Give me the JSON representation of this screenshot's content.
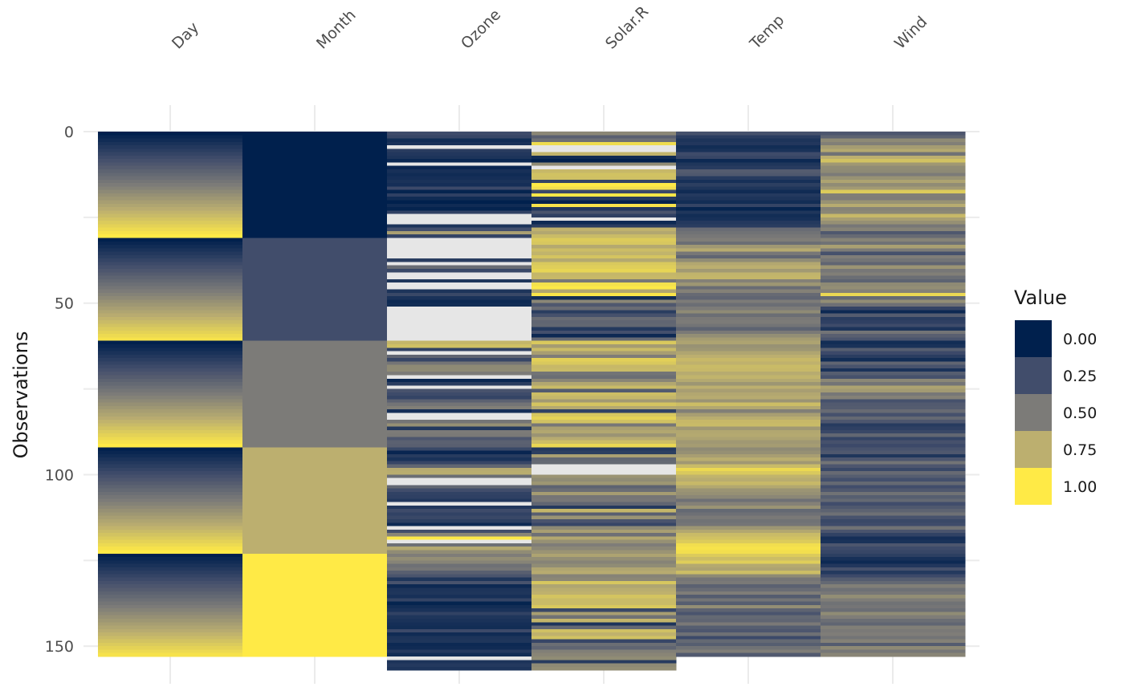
{
  "chart_data": {
    "type": "heatmap",
    "title": "",
    "xlabel": "",
    "ylabel": "Observations",
    "columns": [
      "Day",
      "Month",
      "Ozone",
      "Solar.R",
      "Temp",
      "Wind"
    ],
    "y_ticks": [
      0,
      50,
      100,
      150
    ],
    "ylim": [
      0,
      153
    ],
    "n_rows": 153,
    "grid": true,
    "missing_color": "#e6e6e6",
    "legend": {
      "title": "Value",
      "position": "right",
      "entries": [
        {
          "label": "0.00",
          "value": 0.0,
          "color": "#00204d"
        },
        {
          "label": "0.25",
          "value": 0.25,
          "color": "#414d6b"
        },
        {
          "label": "0.50",
          "value": 0.5,
          "color": "#7c7b78"
        },
        {
          "label": "0.75",
          "value": 0.75,
          "color": "#bcaf6f"
        },
        {
          "label": "1.00",
          "value": 1.0,
          "color": "#ffea46"
        }
      ]
    },
    "colorscale": [
      "#00204d",
      "#414d6b",
      "#7c7b78",
      "#bcaf6f",
      "#ffea46"
    ],
    "series": [
      {
        "name": "Day",
        "values": [
          0.0,
          0.033,
          0.067,
          0.1,
          0.133,
          0.167,
          0.2,
          0.233,
          0.267,
          0.3,
          0.333,
          0.367,
          0.4,
          0.433,
          0.467,
          0.5,
          0.533,
          0.567,
          0.6,
          0.633,
          0.667,
          0.7,
          0.733,
          0.767,
          0.8,
          0.833,
          0.867,
          0.9,
          0.933,
          0.967,
          1.0,
          0.0,
          0.033,
          0.067,
          0.1,
          0.133,
          0.167,
          0.2,
          0.233,
          0.267,
          0.3,
          0.333,
          0.367,
          0.4,
          0.433,
          0.467,
          0.5,
          0.533,
          0.567,
          0.6,
          0.633,
          0.667,
          0.7,
          0.733,
          0.767,
          0.8,
          0.833,
          0.867,
          0.9,
          0.933,
          0.967,
          0.0,
          0.033,
          0.067,
          0.1,
          0.133,
          0.167,
          0.2,
          0.233,
          0.267,
          0.3,
          0.333,
          0.367,
          0.4,
          0.433,
          0.467,
          0.5,
          0.533,
          0.567,
          0.6,
          0.633,
          0.667,
          0.7,
          0.733,
          0.767,
          0.8,
          0.833,
          0.867,
          0.9,
          0.933,
          0.967,
          1.0,
          0.0,
          0.033,
          0.067,
          0.1,
          0.133,
          0.167,
          0.2,
          0.233,
          0.267,
          0.3,
          0.333,
          0.367,
          0.4,
          0.433,
          0.467,
          0.5,
          0.533,
          0.567,
          0.6,
          0.633,
          0.667,
          0.7,
          0.733,
          0.767,
          0.8,
          0.833,
          0.867,
          0.9,
          0.933,
          0.967,
          1.0,
          0.0,
          0.033,
          0.067,
          0.1,
          0.133,
          0.167,
          0.2,
          0.233,
          0.267,
          0.3,
          0.333,
          0.367,
          0.4,
          0.433,
          0.467,
          0.5,
          0.533,
          0.567,
          0.6,
          0.633,
          0.667,
          0.7,
          0.733,
          0.767,
          0.8,
          0.833,
          0.867,
          0.9,
          0.933,
          0.967
        ]
      },
      {
        "name": "Month",
        "values": [
          0,
          0,
          0,
          0,
          0,
          0,
          0,
          0,
          0,
          0,
          0,
          0,
          0,
          0,
          0,
          0,
          0,
          0,
          0,
          0,
          0,
          0,
          0,
          0,
          0,
          0,
          0,
          0,
          0,
          0,
          0,
          0.25,
          0.25,
          0.25,
          0.25,
          0.25,
          0.25,
          0.25,
          0.25,
          0.25,
          0.25,
          0.25,
          0.25,
          0.25,
          0.25,
          0.25,
          0.25,
          0.25,
          0.25,
          0.25,
          0.25,
          0.25,
          0.25,
          0.25,
          0.25,
          0.25,
          0.25,
          0.25,
          0.25,
          0.25,
          0.25,
          0.5,
          0.5,
          0.5,
          0.5,
          0.5,
          0.5,
          0.5,
          0.5,
          0.5,
          0.5,
          0.5,
          0.5,
          0.5,
          0.5,
          0.5,
          0.5,
          0.5,
          0.5,
          0.5,
          0.5,
          0.5,
          0.5,
          0.5,
          0.5,
          0.5,
          0.5,
          0.5,
          0.5,
          0.5,
          0.5,
          0.5,
          0.75,
          0.75,
          0.75,
          0.75,
          0.75,
          0.75,
          0.75,
          0.75,
          0.75,
          0.75,
          0.75,
          0.75,
          0.75,
          0.75,
          0.75,
          0.75,
          0.75,
          0.75,
          0.75,
          0.75,
          0.75,
          0.75,
          0.75,
          0.75,
          0.75,
          0.75,
          0.75,
          0.75,
          0.75,
          0.75,
          0.75,
          1,
          1,
          1,
          1,
          1,
          1,
          1,
          1,
          1,
          1,
          1,
          1,
          1,
          1,
          1,
          1,
          1,
          1,
          1,
          1,
          1,
          1,
          1,
          1,
          1,
          1,
          1,
          1,
          1,
          1
        ]
      },
      {
        "name": "Ozone",
        "values": [
          0.24,
          0.21,
          0.07,
          0.1,
          null,
          0.16,
          0.13,
          0.11,
          0.04,
          null,
          0.03,
          0.09,
          0.06,
          0.08,
          0.1,
          0.08,
          0.23,
          0.02,
          0.18,
          0.06,
          0.0,
          0.06,
          0.02,
          0.19,
          null,
          null,
          null,
          0.11,
          0.26,
          0.68,
          0.2,
          null,
          null,
          null,
          null,
          null,
          null,
          0.16,
          null,
          0.42,
          0.22,
          null,
          null,
          0.12,
          null,
          null,
          0.11,
          0.22,
          0.1,
          0.05,
          0.07,
          null,
          null,
          null,
          null,
          null,
          null,
          null,
          null,
          null,
          null,
          0.78,
          0.82,
          0.19,
          null,
          0.38,
          0.21,
          0.47,
          0.57,
          0.57,
          0.5,
          null,
          0.04,
          0.16,
          null,
          0.28,
          0.24,
          0.2,
          0.36,
          0.46,
          0.52,
          0.08,
          null,
          null,
          0.47,
          0.6,
          0.14,
          0.5,
          0.49,
          0.3,
          0.36,
          0.35,
          0.22,
          0.03,
          0.15,
          0.1,
          0.21,
          0.39,
          0.73,
          0.74,
          0.43,
          null,
          null,
          0.39,
          0.25,
          0.19,
          0.18,
          0.13,
          null,
          0.13,
          0.24,
          0.19,
          0.22,
          0.17,
          0.05,
          null,
          0.25,
          0.55,
          0.99,
          null,
          0.44,
          0.72,
          0.58,
          0.51,
          0.59,
          0.54,
          0.44,
          0.47,
          0.35,
          0.29,
          0.12,
          0.28,
          0.05,
          0.11,
          0.12,
          0.09,
          0.2,
          0.02,
          0.07,
          0.1,
          0.19,
          0.12,
          0.1,
          0.08,
          0.07,
          0.23,
          0.06,
          0.11,
          0.12,
          0.05,
          0.06,
          0.14,
          0.07,
          null,
          0.11,
          0.14,
          0.11
        ]
      },
      {
        "name": "Solar.R",
        "values": [
          0.56,
          0.35,
          0.44,
          0.94,
          null,
          null,
          0.77,
          0.06,
          0.0,
          0.58,
          null,
          0.79,
          0.83,
          0.82,
          0.2,
          1.0,
          0.95,
          0.23,
          0.99,
          0.16,
          0.01,
          0.97,
          0.13,
          0.29,
          0.18,
          null,
          0.05,
          0.16,
          0.76,
          0.71,
          0.8,
          0.87,
          0.85,
          0.72,
          0.81,
          0.77,
          0.84,
          0.72,
          0.86,
          0.88,
          0.91,
          0.78,
          0.79,
          0.48,
          0.96,
          0.99,
          0.71,
          0.98,
          0.07,
          0.56,
          0.31,
          0.42,
          0.16,
          0.27,
          0.42,
          0.38,
          0.39,
          0.14,
          0.26,
          0.05,
          0.41,
          0.86,
          0.66,
          0.8,
          0.67,
          0.51,
          0.89,
          0.86,
          0.79,
          0.8,
          0.46,
          0.43,
          0.55,
          0.71,
          0.8,
          0.32,
          0.81,
          0.78,
          0.65,
          0.84,
          0.72,
          0.19,
          0.85,
          0.9,
          0.83,
          0.48,
          0.68,
          0.71,
          0.62,
          0.73,
          0.81,
          0.92,
          0.14,
          0.17,
          0.68,
          0.39,
          0.4,
          null,
          null,
          null,
          0.62,
          0.58,
          0.63,
          0.37,
          0.43,
          0.66,
          0.47,
          0.48,
          0.38,
          0.14,
          0.78,
          0.35,
          0.62,
          0.29,
          0.21,
          0.57,
          0.67,
          0.44,
          0.71,
          0.6,
          0.51,
          0.56,
          0.62,
          0.69,
          0.59,
          0.54,
          0.58,
          0.7,
          0.73,
          0.54,
          0.56,
          0.85,
          0.7,
          0.74,
          0.76,
          0.84,
          0.8,
          0.8,
          0.86,
          0.22,
          0.67,
          0.45,
          0.78,
          0.11,
          0.4,
          0.82,
          0.76,
          0.83,
          0.21,
          0.43,
          0.38,
          0.52,
          0.55,
          0.58,
          0.15,
          0.57,
          0.59
        ]
      },
      {
        "name": "Temp",
        "values": [
          0.27,
          0.16,
          0.11,
          0.13,
          0.07,
          0.1,
          0.24,
          0.21,
          0.05,
          0.12,
          0.15,
          0.33,
          0.31,
          0.15,
          0.09,
          0.17,
          0.12,
          0.06,
          0.14,
          0.11,
          0.07,
          0.2,
          0.02,
          0.12,
          0.07,
          0.09,
          0.14,
          0.16,
          0.42,
          0.45,
          0.48,
          0.51,
          0.43,
          0.64,
          0.73,
          0.48,
          0.38,
          0.58,
          0.71,
          0.75,
          0.65,
          0.77,
          0.78,
          0.53,
          0.63,
          0.42,
          0.53,
          0.41,
          0.38,
          0.5,
          0.43,
          0.5,
          0.57,
          0.43,
          0.49,
          0.5,
          0.46,
          0.37,
          0.49,
          0.59,
          0.66,
          0.69,
          0.61,
          0.63,
          0.7,
          0.75,
          0.79,
          0.76,
          0.8,
          0.79,
          0.73,
          0.77,
          0.72,
          0.63,
          0.75,
          0.67,
          0.71,
          0.73,
          0.62,
          0.81,
          0.71,
          0.52,
          0.67,
          0.74,
          0.79,
          0.8,
          0.64,
          0.71,
          0.72,
          0.69,
          0.64,
          0.66,
          0.57,
          0.6,
          0.67,
          0.74,
          0.64,
          0.8,
          0.93,
          0.86,
          0.77,
          0.74,
          0.79,
          0.71,
          0.62,
          0.6,
          0.56,
          0.44,
          0.53,
          0.62,
          0.4,
          0.44,
          0.49,
          0.45,
          0.47,
          0.63,
          0.71,
          0.8,
          0.83,
          0.87,
          0.95,
          0.97,
          0.95,
          0.87,
          0.81,
          0.88,
          0.72,
          0.69,
          0.81,
          0.57,
          0.47,
          0.49,
          0.36,
          0.42,
          0.51,
          0.33,
          0.46,
          0.34,
          0.59,
          0.37,
          0.29,
          0.4,
          0.38,
          0.49,
          0.34,
          0.3,
          0.44,
          0.23,
          0.4,
          0.34,
          0.45,
          0.51,
          0.32
        ]
      },
      {
        "name": "Wind",
        "values": [
          0.3,
          0.37,
          0.57,
          0.52,
          0.66,
          0.72,
          0.45,
          0.75,
          0.83,
          0.64,
          0.58,
          0.57,
          0.5,
          0.61,
          0.69,
          0.58,
          0.65,
          0.87,
          0.52,
          0.51,
          0.61,
          0.73,
          0.54,
          0.56,
          0.79,
          0.67,
          0.6,
          0.48,
          0.54,
          0.31,
          0.41,
          0.54,
          0.45,
          0.68,
          0.5,
          0.27,
          0.51,
          0.46,
          0.38,
          0.62,
          0.48,
          0.52,
          0.43,
          0.37,
          0.57,
          0.59,
          0.53,
          0.92,
          0.4,
          0.59,
          0.44,
          0.2,
          0.05,
          0.33,
          0.16,
          0.18,
          0.24,
          0.11,
          0.46,
          0.35,
          0.29,
          0.07,
          0.1,
          0.34,
          0.23,
          0.16,
          0.07,
          0.38,
          0.28,
          0.1,
          0.34,
          0.27,
          0.56,
          0.46,
          0.69,
          0.65,
          0.48,
          0.53,
          0.27,
          0.32,
          0.33,
          0.41,
          0.27,
          0.4,
          0.3,
          0.15,
          0.18,
          0.22,
          0.39,
          0.2,
          0.27,
          0.23,
          0.28,
          0.31,
          0.12,
          0.3,
          0.46,
          0.3,
          0.22,
          0.41,
          0.34,
          0.26,
          0.4,
          0.25,
          0.31,
          0.45,
          0.34,
          0.4,
          0.25,
          0.31,
          0.37,
          0.44,
          0.28,
          0.22,
          0.24,
          0.45,
          0.29,
          0.19,
          0.08,
          0.1,
          0.3,
          0.24,
          0.21,
          0.17,
          0.09,
          0.05,
          0.13,
          0.27,
          0.14,
          0.23,
          0.33,
          0.4,
          0.52,
          0.44,
          0.48,
          0.59,
          0.51,
          0.45,
          0.47,
          0.43,
          0.58,
          0.51,
          0.43,
          0.38,
          0.52,
          0.49,
          0.51,
          0.46,
          0.53,
          0.33,
          0.57,
          0.48,
          0.55
        ]
      }
    ]
  }
}
